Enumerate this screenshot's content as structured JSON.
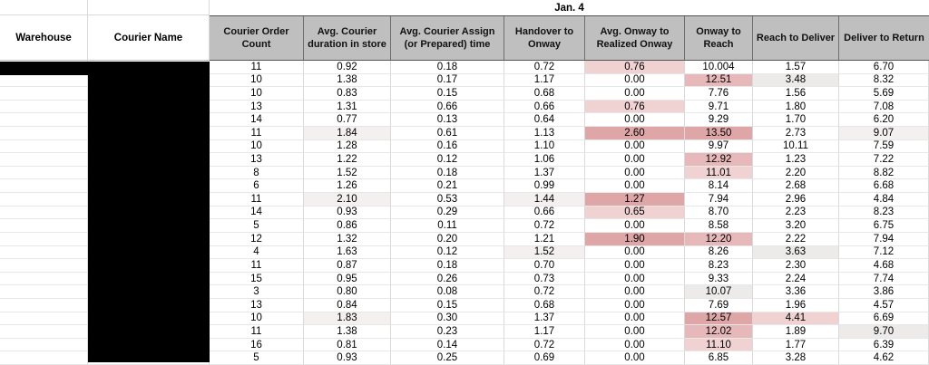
{
  "header": {
    "date_label": "Jan. 4",
    "left_headers": [
      "Warehouse",
      "Courier Name"
    ],
    "metric_headers": [
      "Courier Order Count",
      "Avg. Courier duration in store",
      "Avg. Courier Assign (or Prepared) time",
      "Handover to Onway",
      "Avg. Onway to Realized Onway",
      "Onway to Reach",
      "Reach to Deliver",
      "Deliver to Return"
    ]
  },
  "palette": {
    "header_bg": "#bfbfbf",
    "rose": "#dfa6a8",
    "pink": "#e7b8b9",
    "light_pink": "#f1d2d3",
    "light_gray": "#edeaea",
    "faint": "#f4f0f0",
    "redaction": "#000000"
  },
  "table": {
    "rows": [
      {
        "cells": [
          {
            "v": "11"
          },
          {
            "v": "0.92"
          },
          {
            "v": "0.18"
          },
          {
            "v": "0.72"
          },
          {
            "v": "0.76",
            "bg": "light_pink"
          },
          {
            "v": "10.004"
          },
          {
            "v": "1.57"
          },
          {
            "v": "6.70"
          }
        ]
      },
      {
        "cells": [
          {
            "v": "10"
          },
          {
            "v": "1.38"
          },
          {
            "v": "0.17"
          },
          {
            "v": "1.17"
          },
          {
            "v": "0.00"
          },
          {
            "v": "12.51",
            "bg": "pink"
          },
          {
            "v": "3.48",
            "bg": "light_gray"
          },
          {
            "v": "8.32"
          }
        ]
      },
      {
        "cells": [
          {
            "v": "10"
          },
          {
            "v": "0.83"
          },
          {
            "v": "0.15"
          },
          {
            "v": "0.68"
          },
          {
            "v": "0.00"
          },
          {
            "v": "7.76"
          },
          {
            "v": "1.56"
          },
          {
            "v": "5.69"
          }
        ]
      },
      {
        "cells": [
          {
            "v": "13"
          },
          {
            "v": "1.31"
          },
          {
            "v": "0.66"
          },
          {
            "v": "0.66"
          },
          {
            "v": "0.76",
            "bg": "light_pink"
          },
          {
            "v": "9.71"
          },
          {
            "v": "1.80"
          },
          {
            "v": "7.08"
          }
        ]
      },
      {
        "cells": [
          {
            "v": "14"
          },
          {
            "v": "0.77"
          },
          {
            "v": "0.13"
          },
          {
            "v": "0.64"
          },
          {
            "v": "0.00"
          },
          {
            "v": "9.29"
          },
          {
            "v": "1.70"
          },
          {
            "v": "6.20"
          }
        ]
      },
      {
        "cells": [
          {
            "v": "11"
          },
          {
            "v": "1.84",
            "bg": "faint"
          },
          {
            "v": "0.61"
          },
          {
            "v": "1.13"
          },
          {
            "v": "2.60",
            "bg": "rose"
          },
          {
            "v": "13.50",
            "bg": "rose"
          },
          {
            "v": "2.73"
          },
          {
            "v": "9.07",
            "bg": "faint"
          }
        ]
      },
      {
        "cells": [
          {
            "v": "10"
          },
          {
            "v": "1.28"
          },
          {
            "v": "0.16"
          },
          {
            "v": "1.10"
          },
          {
            "v": "0.00"
          },
          {
            "v": "9.97"
          },
          {
            "v": "10.11"
          },
          {
            "v": "7.59"
          }
        ]
      },
      {
        "cells": [
          {
            "v": "13"
          },
          {
            "v": "1.22"
          },
          {
            "v": "0.12"
          },
          {
            "v": "1.06"
          },
          {
            "v": "0.00"
          },
          {
            "v": "12.92",
            "bg": "pink"
          },
          {
            "v": "1.23"
          },
          {
            "v": "7.22"
          }
        ]
      },
      {
        "cells": [
          {
            "v": "8"
          },
          {
            "v": "1.52"
          },
          {
            "v": "0.18"
          },
          {
            "v": "1.37"
          },
          {
            "v": "0.00"
          },
          {
            "v": "11.01",
            "bg": "light_pink"
          },
          {
            "v": "2.20"
          },
          {
            "v": "8.82"
          }
        ]
      },
      {
        "cells": [
          {
            "v": "6"
          },
          {
            "v": "1.26"
          },
          {
            "v": "0.21"
          },
          {
            "v": "0.99"
          },
          {
            "v": "0.00"
          },
          {
            "v": "8.14"
          },
          {
            "v": "2.68"
          },
          {
            "v": "6.68"
          }
        ]
      },
      {
        "cells": [
          {
            "v": "11"
          },
          {
            "v": "2.10",
            "bg": "faint"
          },
          {
            "v": "0.53"
          },
          {
            "v": "1.44",
            "bg": "faint"
          },
          {
            "v": "1.27",
            "bg": "rose"
          },
          {
            "v": "7.94"
          },
          {
            "v": "2.96"
          },
          {
            "v": "4.84"
          }
        ]
      },
      {
        "cells": [
          {
            "v": "14"
          },
          {
            "v": "0.93"
          },
          {
            "v": "0.29"
          },
          {
            "v": "0.66"
          },
          {
            "v": "0.65",
            "bg": "light_pink"
          },
          {
            "v": "8.70"
          },
          {
            "v": "2.23"
          },
          {
            "v": "8.23"
          }
        ]
      },
      {
        "cells": [
          {
            "v": "5"
          },
          {
            "v": "0.86"
          },
          {
            "v": "0.11"
          },
          {
            "v": "0.72"
          },
          {
            "v": "0.00"
          },
          {
            "v": "8.58"
          },
          {
            "v": "3.20"
          },
          {
            "v": "6.75"
          }
        ]
      },
      {
        "cells": [
          {
            "v": "12"
          },
          {
            "v": "1.32"
          },
          {
            "v": "0.20"
          },
          {
            "v": "1.21"
          },
          {
            "v": "1.90",
            "bg": "rose"
          },
          {
            "v": "12.20",
            "bg": "pink"
          },
          {
            "v": "2.22"
          },
          {
            "v": "7.94"
          }
        ]
      },
      {
        "cells": [
          {
            "v": "4"
          },
          {
            "v": "1.63"
          },
          {
            "v": "0.12"
          },
          {
            "v": "1.52",
            "bg": "faint"
          },
          {
            "v": "0.00"
          },
          {
            "v": "8.26"
          },
          {
            "v": "3.63",
            "bg": "light_gray"
          },
          {
            "v": "7.12"
          }
        ]
      },
      {
        "cells": [
          {
            "v": "11"
          },
          {
            "v": "0.87"
          },
          {
            "v": "0.18"
          },
          {
            "v": "0.70"
          },
          {
            "v": "0.00"
          },
          {
            "v": "8.23"
          },
          {
            "v": "2.30"
          },
          {
            "v": "4.68"
          }
        ]
      },
      {
        "cells": [
          {
            "v": "15"
          },
          {
            "v": "0.95"
          },
          {
            "v": "0.26"
          },
          {
            "v": "0.73"
          },
          {
            "v": "0.00"
          },
          {
            "v": "9.33"
          },
          {
            "v": "2.24"
          },
          {
            "v": "7.74"
          }
        ]
      },
      {
        "cells": [
          {
            "v": "3"
          },
          {
            "v": "0.80"
          },
          {
            "v": "0.08"
          },
          {
            "v": "0.72"
          },
          {
            "v": "0.00"
          },
          {
            "v": "10.07",
            "bg": "light_gray"
          },
          {
            "v": "3.36"
          },
          {
            "v": "3.86"
          }
        ]
      },
      {
        "cells": [
          {
            "v": "13"
          },
          {
            "v": "0.84"
          },
          {
            "v": "0.15"
          },
          {
            "v": "0.68"
          },
          {
            "v": "0.00"
          },
          {
            "v": "7.69"
          },
          {
            "v": "1.96"
          },
          {
            "v": "4.57"
          }
        ]
      },
      {
        "cells": [
          {
            "v": "10"
          },
          {
            "v": "1.83",
            "bg": "faint"
          },
          {
            "v": "0.30"
          },
          {
            "v": "1.37"
          },
          {
            "v": "0.00"
          },
          {
            "v": "12.57",
            "bg": "rose"
          },
          {
            "v": "4.41",
            "bg": "light_pink"
          },
          {
            "v": "6.69"
          }
        ]
      },
      {
        "cells": [
          {
            "v": "11"
          },
          {
            "v": "1.38"
          },
          {
            "v": "0.23"
          },
          {
            "v": "1.17"
          },
          {
            "v": "0.00"
          },
          {
            "v": "12.02",
            "bg": "pink"
          },
          {
            "v": "1.89"
          },
          {
            "v": "9.70",
            "bg": "light_gray"
          }
        ]
      },
      {
        "cells": [
          {
            "v": "16"
          },
          {
            "v": "0.81"
          },
          {
            "v": "0.14"
          },
          {
            "v": "0.72"
          },
          {
            "v": "0.00"
          },
          {
            "v": "11.10",
            "bg": "light_pink"
          },
          {
            "v": "1.77"
          },
          {
            "v": "6.39"
          }
        ]
      },
      {
        "cells": [
          {
            "v": "5"
          },
          {
            "v": "0.93"
          },
          {
            "v": "0.25"
          },
          {
            "v": "0.69"
          },
          {
            "v": "0.00"
          },
          {
            "v": "6.85"
          },
          {
            "v": "3.28"
          },
          {
            "v": "4.62"
          }
        ]
      }
    ]
  }
}
